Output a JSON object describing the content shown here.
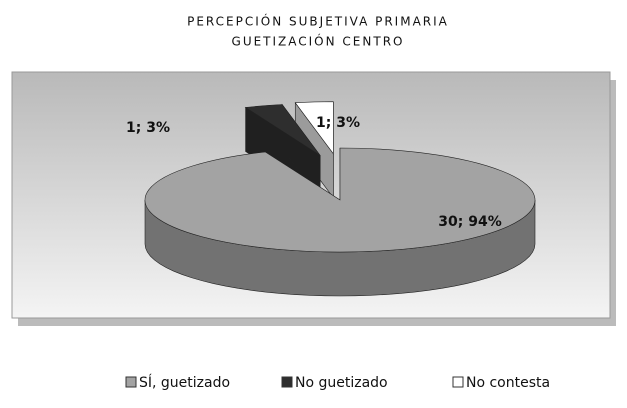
{
  "chart_data": {
    "type": "pie3d",
    "title": [
      "PERCEPCIÓN SUBJETIVA PRIMARIA",
      "GUETIZACIÓN CENTRO"
    ],
    "categories": [
      "SÍ, guetizado",
      "No guetizado",
      "No contesta"
    ],
    "values": [
      30,
      1,
      1
    ],
    "value_labels": [
      "30; 94%",
      "1; 3%",
      "1; 3%"
    ],
    "colors": [
      "#a3a3a3",
      "#2e2e2e",
      "#ffffff"
    ],
    "legend": "bottom"
  }
}
